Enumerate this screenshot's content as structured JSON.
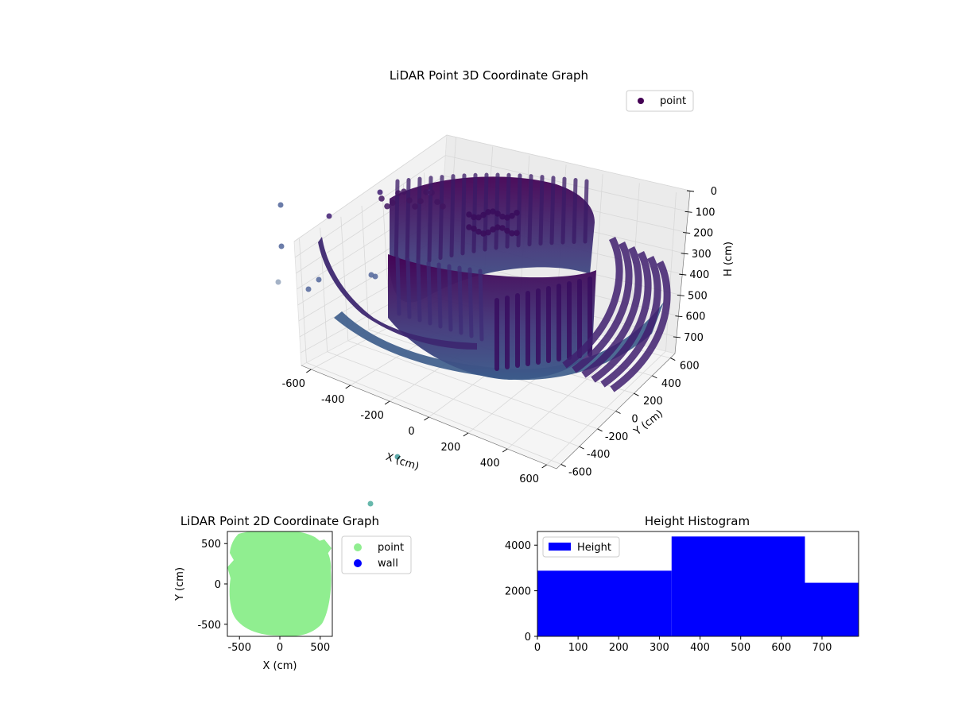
{
  "chart_data": [
    {
      "type": "scatter",
      "projection": "3d",
      "title": "LiDAR Point 3D Coordinate Graph",
      "xlabel": "X (cm)",
      "ylabel": "Y (cm)",
      "zlabel": "H (cm)",
      "xlim": [
        -650,
        650
      ],
      "ylim": [
        -650,
        650
      ],
      "zlim": [
        780,
        0
      ],
      "z_inverted": true,
      "x_ticks": [
        "-600",
        "-400",
        "-200",
        "0",
        "200",
        "400",
        "600"
      ],
      "y_ticks": [
        "-600",
        "-400",
        "-200",
        "0",
        "200",
        "400",
        "600"
      ],
      "z_ticks": [
        "0",
        "100",
        "200",
        "300",
        "400",
        "500",
        "600",
        "700"
      ],
      "grid": true,
      "colormap": "viridis",
      "legend": {
        "placement": "top-right",
        "entries": [
          {
            "label": "point",
            "color": "#440154"
          }
        ]
      },
      "series": [
        {
          "name": "point",
          "shape": "cylindrical wall scan, radius ~560 cm, heights 0-700 cm",
          "x_range": [
            -600,
            600
          ],
          "y_range": [
            -600,
            600
          ],
          "h_range": [
            0,
            700
          ]
        }
      ]
    },
    {
      "type": "scatter",
      "title": "LiDAR Point 2D Coordinate Graph",
      "xlabel": "X (cm)",
      "ylabel": "Y (cm)",
      "xlim": [
        -650,
        650
      ],
      "ylim": [
        -650,
        650
      ],
      "x_ticks": [
        "-500",
        "0",
        "500"
      ],
      "y_ticks": [
        "-500",
        "0",
        "500"
      ],
      "legend": {
        "placement": "outside-right",
        "entries": [
          {
            "label": "point",
            "color": "#90ee90"
          },
          {
            "label": "wall",
            "color": "#0000ff"
          }
        ]
      },
      "series": [
        {
          "name": "point",
          "color": "#90ee90",
          "shape": "filled disc, radius ~600 cm"
        },
        {
          "name": "wall",
          "color": "#0000ff",
          "values": []
        }
      ]
    },
    {
      "type": "bar",
      "subtype": "histogram",
      "title": "Height Histogram",
      "xlim": [
        0,
        790
      ],
      "ylim": [
        0,
        4600
      ],
      "x_ticks": [
        "0",
        "100",
        "200",
        "300",
        "400",
        "500",
        "600",
        "700"
      ],
      "y_ticks": [
        "0",
        "2000",
        "4000"
      ],
      "legend": {
        "placement": "top-left",
        "entries": [
          {
            "label": "Height",
            "color": "#0000ff"
          }
        ]
      },
      "bins": [
        {
          "from": 0,
          "to": 330,
          "count": 2880
        },
        {
          "from": 330,
          "to": 658,
          "count": 4380
        },
        {
          "from": 658,
          "to": 790,
          "count": 2350
        }
      ],
      "color": "#0000ff"
    }
  ]
}
